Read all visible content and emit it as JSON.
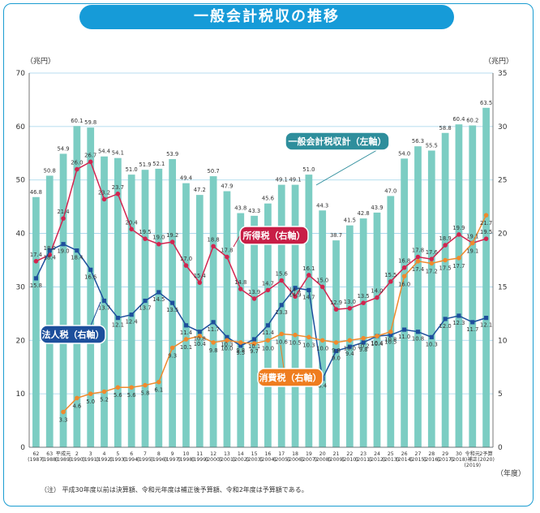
{
  "title": "一般会計税収の推移",
  "note": "（注） 平成30年度以前は決算額、令和元年度は補正後予算額、令和2年度は予算額である。",
  "chart_data": {
    "type": "bar+line",
    "left_unit": "（兆円）",
    "right_unit": "（兆円）",
    "x_unit": "（年度）",
    "ylim_left": [
      0,
      70
    ],
    "ylim_right": [
      0,
      35
    ],
    "left_ticks": [
      "0",
      "10",
      "20",
      "30",
      "40",
      "50",
      "60",
      "70"
    ],
    "right_ticks": [
      "0",
      "5",
      "10",
      "15",
      "20",
      "25",
      "30",
      "35"
    ],
    "categories": [
      [
        "62",
        "(1987)"
      ],
      [
        "63",
        "(1988)"
      ],
      [
        "平成元",
        "(1989)"
      ],
      [
        "2",
        "(1990)"
      ],
      [
        "3",
        "(1991)"
      ],
      [
        "4",
        "(1992)"
      ],
      [
        "5",
        "(1993)"
      ],
      [
        "6",
        "(1994)"
      ],
      [
        "7",
        "(1995)"
      ],
      [
        "8",
        "(1996)"
      ],
      [
        "9",
        "(1997)"
      ],
      [
        "10",
        "(1998)"
      ],
      [
        "11",
        "(1999)"
      ],
      [
        "12",
        "(2000)"
      ],
      [
        "13",
        "(2001)"
      ],
      [
        "14",
        "(2002)"
      ],
      [
        "15",
        "(2003)"
      ],
      [
        "16",
        "(2004)"
      ],
      [
        "17",
        "(2005)"
      ],
      [
        "18",
        "(2006)"
      ],
      [
        "19",
        "(2007)"
      ],
      [
        "20",
        "(2008)"
      ],
      [
        "21",
        "(2009)"
      ],
      [
        "22",
        "(2010)"
      ],
      [
        "23",
        "(2011)"
      ],
      [
        "24",
        "(2012)"
      ],
      [
        "25",
        "(2013)"
      ],
      [
        "26",
        "(2014)"
      ],
      [
        "27",
        "(2015)"
      ],
      [
        "28",
        "(2016)"
      ],
      [
        "29",
        "(2017)"
      ],
      [
        "30",
        "(2018)"
      ],
      [
        "令和元",
        "補正",
        "(2019)"
      ],
      [
        "2予算",
        "(2020)"
      ]
    ],
    "series": [
      {
        "name": "一般会計税収計",
        "label": "一般会計税収計（左軸）",
        "axis": "left",
        "color": "#7ccdc3",
        "kind": "bar",
        "values": [
          46.8,
          50.8,
          54.9,
          60.1,
          59.8,
          54.4,
          54.1,
          51.0,
          51.9,
          52.1,
          53.9,
          49.4,
          47.2,
          50.7,
          47.9,
          43.8,
          43.3,
          45.6,
          49.1,
          49.1,
          51.0,
          44.3,
          38.7,
          41.5,
          42.8,
          43.9,
          47.0,
          54.0,
          56.3,
          55.5,
          58.8,
          60.4,
          60.2,
          63.5
        ]
      },
      {
        "name": "所得税",
        "label": "所得税（右軸）",
        "axis": "right",
        "color": "#d2254f",
        "kind": "line",
        "values": [
          17.4,
          18.0,
          21.4,
          26.0,
          26.7,
          23.2,
          23.7,
          20.4,
          19.5,
          19.0,
          19.2,
          17.0,
          15.4,
          18.8,
          17.8,
          14.8,
          13.9,
          14.7,
          15.6,
          14.1,
          16.1,
          15.0,
          12.9,
          13.0,
          13.5,
          14.0,
          15.5,
          16.8,
          17.8,
          17.6,
          18.9,
          19.9,
          19.1,
          19.5
        ]
      },
      {
        "name": "法人税",
        "label": "法人税（右軸）",
        "axis": "right",
        "color": "#1d4f9c",
        "kind": "line",
        "values": [
          15.8,
          18.4,
          19.0,
          18.4,
          16.6,
          13.7,
          12.1,
          12.4,
          13.7,
          14.5,
          13.5,
          11.4,
          10.8,
          11.7,
          10.3,
          9.5,
          10.1,
          11.4,
          13.3,
          14.9,
          14.7,
          6.4,
          9.0,
          9.4,
          9.8,
          10.4,
          10.5,
          11.0,
          10.8,
          10.3,
          12.0,
          12.3,
          11.7,
          12.1
        ]
      },
      {
        "name": "消費税",
        "label": "消費税（右軸）",
        "axis": "right",
        "color": "#ef8a2d",
        "kind": "line",
        "values": [
          null,
          null,
          3.3,
          4.6,
          5.0,
          5.2,
          5.6,
          5.6,
          5.8,
          6.1,
          9.3,
          10.1,
          10.4,
          9.8,
          10.0,
          9.8,
          9.7,
          10.0,
          10.6,
          10.5,
          10.3,
          10.0,
          9.8,
          10.0,
          10.2,
          10.4,
          10.8,
          16.0,
          17.4,
          17.2,
          17.5,
          17.7,
          19.1,
          21.7
        ]
      }
    ]
  }
}
